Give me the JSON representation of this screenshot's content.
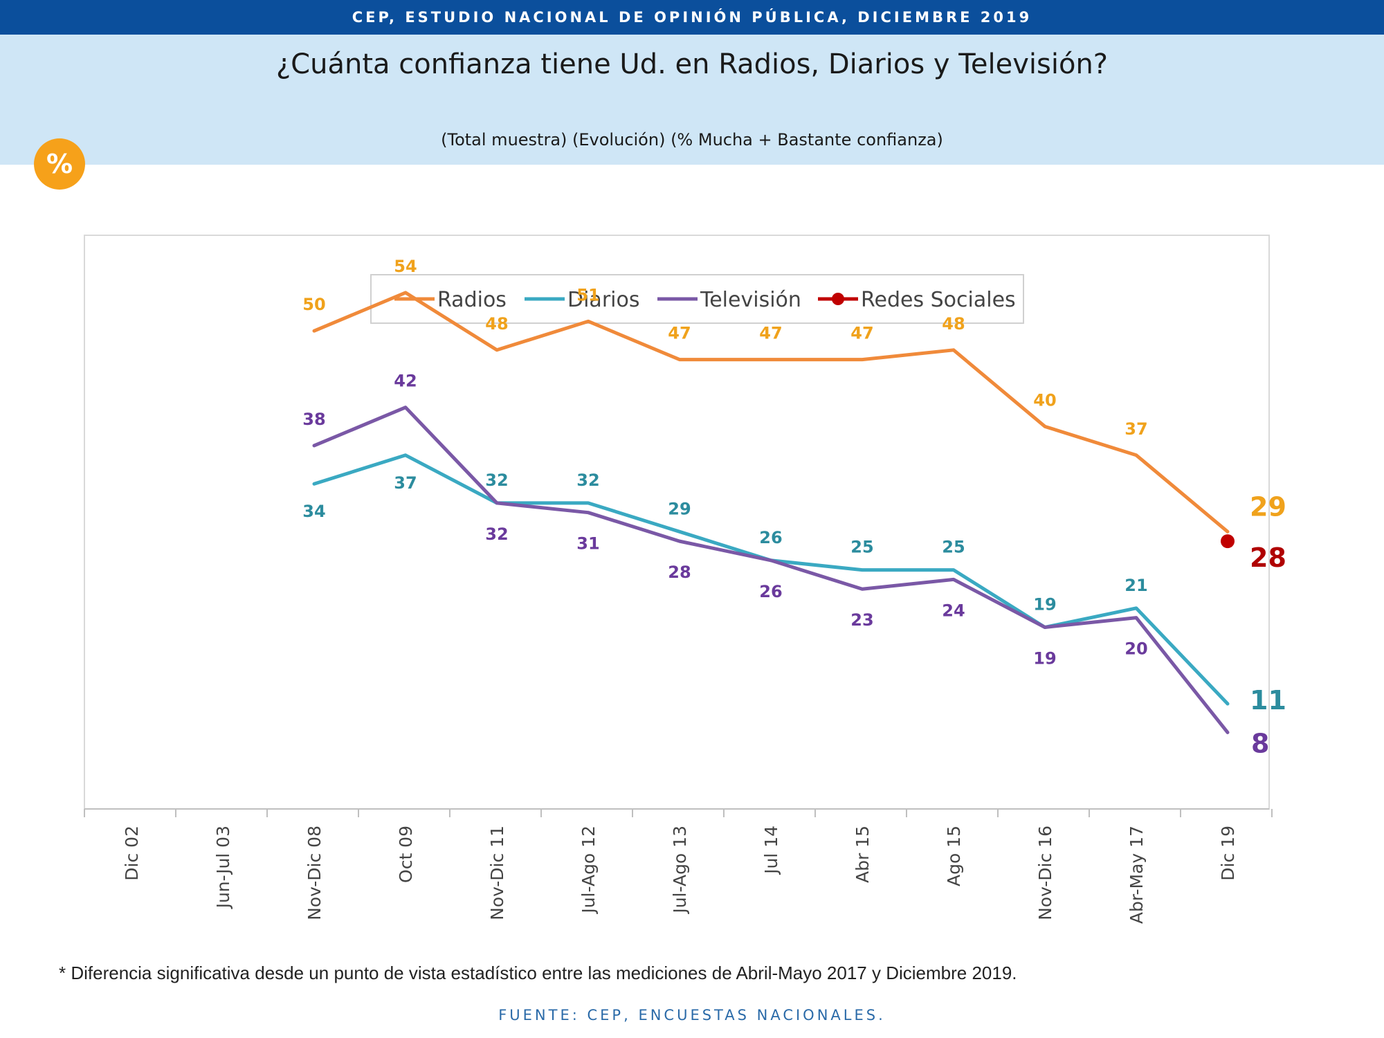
{
  "header": {
    "banner": "CEP, ESTUDIO NACIONAL DE OPINIÓN PÚBLICA, DICIEMBRE 2019",
    "title": "¿Cuánta confianza tiene Ud. en Radios, Diarios y Televisión?",
    "subtitle": "(Total muestra) (Evolución) (% Mucha + Bastante confianza)",
    "badge": "%"
  },
  "footer": {
    "footnote": "* Diferencia significativa desde un punto de vista estadístico entre las mediciones de Abril-Mayo 2017 y Diciembre 2019.",
    "source": "FUENTE: CEP, ENCUESTAS NACIONALES."
  },
  "chart_data": {
    "type": "line",
    "categories": [
      "Dic 02",
      "Jun-Jul 03",
      "Nov-Dic 08",
      "Oct 09",
      "Nov-Dic 11",
      "Jul-Ago 12",
      "Jul-Ago 13",
      "Jul 14",
      "Abr 15",
      "Ago 15",
      "Nov-Dic 16",
      "Abr-May 17",
      "Dic 19"
    ],
    "ylim": [
      0,
      60
    ],
    "grid": false,
    "legend_position": "top-center",
    "series": [
      {
        "name": "Radios",
        "color": "#f08a3a",
        "label_color": "#f0a21c",
        "values": [
          null,
          null,
          50,
          54,
          48,
          51,
          47,
          47,
          47,
          48,
          40,
          37,
          29
        ]
      },
      {
        "name": "Diarios",
        "color": "#3aa9c2",
        "label_color": "#2c8c9e",
        "values": [
          null,
          null,
          34,
          37,
          32,
          32,
          29,
          26,
          25,
          25,
          19,
          21,
          11
        ]
      },
      {
        "name": "Televisión",
        "color": "#7a58a6",
        "label_color": "#6a3a9c",
        "values": [
          null,
          null,
          38,
          42,
          32,
          31,
          28,
          26,
          23,
          24,
          19,
          20,
          8
        ]
      },
      {
        "name": "Redes Sociales",
        "color": "#c00000",
        "label_color": "#b00000",
        "values": [
          null,
          null,
          null,
          null,
          null,
          null,
          null,
          null,
          null,
          null,
          null,
          null,
          28
        ]
      }
    ]
  }
}
